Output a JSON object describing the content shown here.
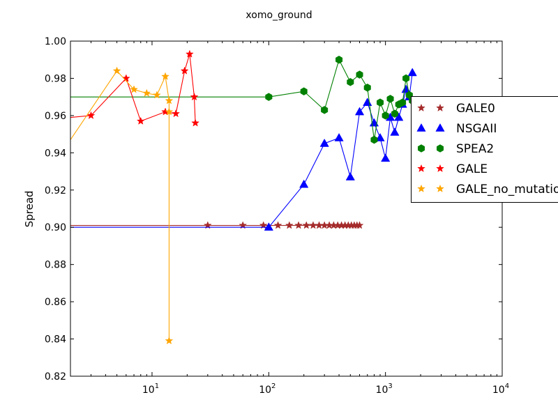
{
  "chart_data": {
    "type": "scatter",
    "title": "xomo_ground",
    "xlabel": "",
    "ylabel": "Spread",
    "xscale": "log",
    "xlim": [
      2,
      10000
    ],
    "ylim": [
      0.82,
      1.0
    ],
    "x_ticks": [
      {
        "value": 10,
        "base": "10",
        "exp": "1"
      },
      {
        "value": 100,
        "base": "10",
        "exp": "2"
      },
      {
        "value": 1000,
        "base": "10",
        "exp": "3"
      },
      {
        "value": 10000,
        "base": "10",
        "exp": "4"
      }
    ],
    "y_ticks": [
      {
        "value": 0.82,
        "label": "0.82"
      },
      {
        "value": 0.84,
        "label": "0.84"
      },
      {
        "value": 0.86,
        "label": "0.86"
      },
      {
        "value": 0.88,
        "label": "0.88"
      },
      {
        "value": 0.9,
        "label": "0.90"
      },
      {
        "value": 0.92,
        "label": "0.92"
      },
      {
        "value": 0.94,
        "label": "0.94"
      },
      {
        "value": 0.96,
        "label": "0.96"
      },
      {
        "value": 0.98,
        "label": "0.98"
      },
      {
        "value": 1.0,
        "label": "1.00"
      }
    ],
    "grid": false,
    "legend": "right",
    "series": [
      {
        "name": "GALE0",
        "color": "#a52a2a",
        "marker": "star",
        "x": [
          2,
          30,
          60,
          90,
          120,
          150,
          180,
          210,
          240,
          270,
          300,
          330,
          360,
          390,
          420,
          450,
          480,
          510,
          540,
          570,
          600
        ],
        "y": [
          0.901,
          0.901,
          0.901,
          0.901,
          0.901,
          0.901,
          0.901,
          0.901,
          0.901,
          0.901,
          0.901,
          0.901,
          0.901,
          0.901,
          0.901,
          0.901,
          0.901,
          0.901,
          0.901,
          0.901,
          0.901
        ],
        "markers_from": 1
      },
      {
        "name": "NSGAII",
        "color": "#0000ff",
        "marker": "triangle",
        "x": [
          2,
          100,
          200,
          300,
          400,
          500,
          600,
          700,
          800,
          900,
          1000,
          1100,
          1200,
          1300,
          1400,
          1500,
          1600,
          1700
        ],
        "y": [
          0.9,
          0.9,
          0.923,
          0.945,
          0.948,
          0.927,
          0.962,
          0.967,
          0.956,
          0.948,
          0.937,
          0.959,
          0.951,
          0.959,
          0.966,
          0.974,
          0.97,
          0.983
        ],
        "markers_from": 1
      },
      {
        "name": "SPEA2",
        "color": "#008000",
        "marker": "hexagon",
        "x": [
          2,
          100,
          200,
          300,
          400,
          500,
          600,
          700,
          800,
          900,
          1000,
          1100,
          1200,
          1300,
          1400,
          1500,
          1600,
          1700
        ],
        "y": [
          0.97,
          0.97,
          0.973,
          0.963,
          0.99,
          0.978,
          0.982,
          0.975,
          0.947,
          0.967,
          0.96,
          0.969,
          0.961,
          0.966,
          0.967,
          0.98,
          0.971,
          0.968
        ],
        "markers_from": 1
      },
      {
        "name": "GALE",
        "color": "#ff0000",
        "marker": "star",
        "x": [
          2,
          3,
          6,
          8,
          13,
          16,
          19,
          21,
          23,
          23.5
        ],
        "y": [
          0.959,
          0.96,
          0.98,
          0.957,
          0.962,
          0.961,
          0.984,
          0.993,
          0.97,
          0.956
        ],
        "markers_from": 1
      },
      {
        "name": "GALE_no_mutation",
        "color": "#ffa500",
        "marker": "star",
        "x": [
          2,
          5,
          7,
          9,
          11,
          13,
          14,
          14,
          14
        ],
        "y": [
          0.947,
          0.984,
          0.974,
          0.972,
          0.971,
          0.981,
          0.968,
          0.962,
          0.839
        ],
        "markers_from": 1
      }
    ]
  }
}
